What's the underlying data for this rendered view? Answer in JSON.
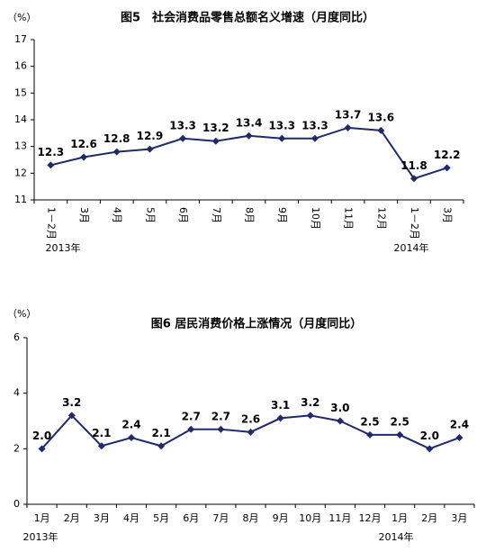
{
  "chart_data": [
    {
      "type": "line",
      "title": "图5　社会消费品零售总额名义增速（月度同比）",
      "y_unit": "（%）",
      "categories": [
        "1－2月",
        "3月",
        "4月",
        "5月",
        "6月",
        "7月",
        "8月",
        "9月",
        "10月",
        "11月",
        "12月",
        "1－2月",
        "3月"
      ],
      "year_labels": [
        "2013年",
        "2014年"
      ],
      "series": [
        {
          "color": "#1f2a6b",
          "values": [
            12.3,
            12.6,
            12.8,
            12.9,
            13.3,
            13.2,
            13.4,
            13.3,
            13.3,
            13.7,
            13.6,
            11.8,
            12.2
          ]
        }
      ],
      "ylim": [
        11,
        17
      ],
      "yticks": [
        11,
        12,
        13,
        14,
        15,
        16,
        17
      ],
      "grid": false
    },
    {
      "type": "line",
      "title": "图6 居民消费价格上涨情况（月度同比）",
      "y_unit": "（%）",
      "categories": [
        "1月",
        "2月",
        "3月",
        "4月",
        "5月",
        "6月",
        "7月",
        "8月",
        "9月",
        "10月",
        "11月",
        "12月",
        "1月",
        "2月",
        "3月"
      ],
      "year_labels": [
        "2013年",
        "2014年"
      ],
      "series": [
        {
          "color": "#1f2a6b",
          "values": [
            2.0,
            3.2,
            2.1,
            2.4,
            2.1,
            2.7,
            2.7,
            2.6,
            3.1,
            3.2,
            3.0,
            2.5,
            2.5,
            2.0,
            2.4
          ],
          "value_labels": [
            "2.0",
            "3.2",
            "2.1",
            "2.4",
            "2.1",
            "2.7",
            "2.7",
            "2.6",
            "3.1",
            "3.2",
            "3.0",
            "2.5",
            "2.5",
            "2.0",
            "2.4"
          ]
        }
      ],
      "ylim": [
        0,
        6
      ],
      "yticks": [
        0,
        2,
        4,
        6
      ],
      "grid": false
    }
  ]
}
